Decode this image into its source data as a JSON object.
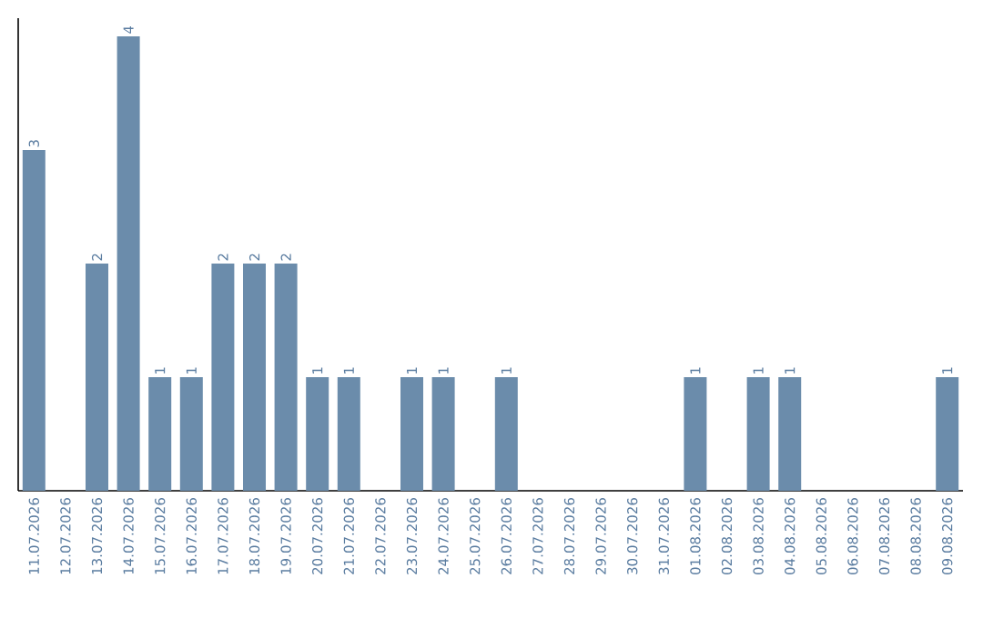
{
  "chart_data": {
    "type": "bar",
    "categories": [
      "11.07.2026",
      "12.07.2026",
      "13.07.2026",
      "14.07.2026",
      "15.07.2026",
      "16.07.2026",
      "17.07.2026",
      "18.07.2026",
      "19.07.2026",
      "20.07.2026",
      "21.07.2026",
      "22.07.2026",
      "23.07.2026",
      "24.07.2026",
      "25.07.2026",
      "26.07.2026",
      "27.07.2026",
      "28.07.2026",
      "29.07.2026",
      "30.07.2026",
      "31.07.2026",
      "01.08.2026",
      "02.08.2026",
      "03.08.2026",
      "04.08.2026",
      "05.08.2026",
      "06.08.2026",
      "07.08.2026",
      "08.08.2026",
      "09.08.2026"
    ],
    "values": [
      3,
      0,
      2,
      4,
      1,
      1,
      2,
      2,
      2,
      1,
      1,
      0,
      1,
      1,
      0,
      1,
      0,
      0,
      0,
      0,
      0,
      1,
      0,
      1,
      1,
      0,
      0,
      0,
      0,
      1
    ],
    "value_labels": [
      "3",
      null,
      "2",
      "4",
      "1",
      "1",
      "2",
      "2",
      "2",
      "1",
      "1",
      null,
      "1",
      "1",
      null,
      "1",
      null,
      null,
      null,
      null,
      null,
      "1",
      null,
      "1",
      "1",
      null,
      null,
      null,
      null,
      "1"
    ],
    "color": "#6b8cab",
    "tick_labels": "x",
    "grid": false
  }
}
